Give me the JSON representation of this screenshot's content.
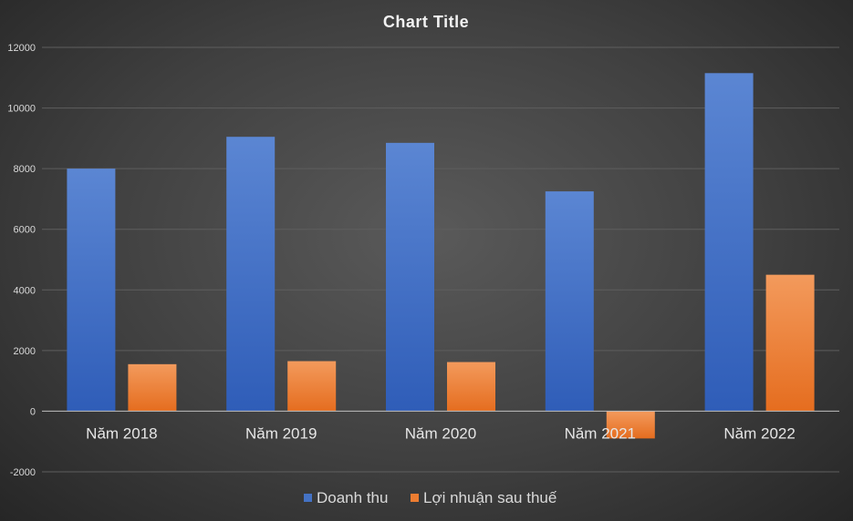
{
  "chart_data": {
    "type": "bar",
    "title": "Chart  Title",
    "categories": [
      "Năm 2018",
      "Năm 2019",
      "Năm 2020",
      "Năm 2021",
      "Năm 2022"
    ],
    "series": [
      {
        "name": "Doanh thu",
        "color": "#4472c4",
        "values": [
          8000,
          9050,
          8850,
          7250,
          11150
        ]
      },
      {
        "name": "Lợi nhuận sau thuế",
        "color": "#ed7d31",
        "values": [
          1550,
          1650,
          1620,
          -900,
          4500
        ]
      }
    ],
    "ylim": [
      -2000,
      12000
    ],
    "yticks": [
      -2000,
      0,
      2000,
      4000,
      6000,
      8000,
      10000,
      12000
    ],
    "grid": true,
    "legend": "bottom"
  }
}
